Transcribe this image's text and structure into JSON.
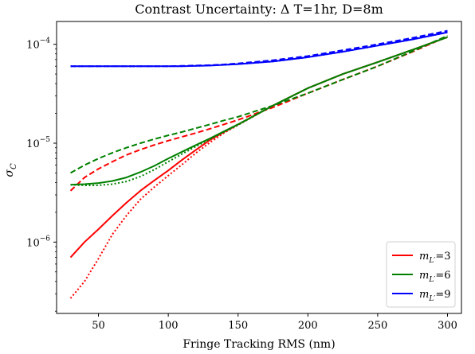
{
  "chart_data": {
    "type": "line",
    "title": "Contrast Uncertainty: Δ T=1hr, D=8m",
    "xlabel": "Fringe Tracking RMS (nm)",
    "ylabel": "σC",
    "ylabel_parts": {
      "base": "σ",
      "sub": "C"
    },
    "xlim": [
      20,
      310
    ],
    "ylim": [
      1.9e-07,
      0.00017
    ],
    "yscale": "log",
    "grid": false,
    "x_ticks": [
      50,
      100,
      150,
      200,
      250,
      300
    ],
    "x_tick_labels": [
      "50",
      "100",
      "150",
      "200",
      "250",
      "300"
    ],
    "y_ticks": [
      1e-06,
      1e-05,
      0.0001
    ],
    "y_tick_labels": [
      {
        "base": "10",
        "exp": "−6"
      },
      {
        "base": "10",
        "exp": "−5"
      },
      {
        "base": "10",
        "exp": "−4"
      }
    ],
    "legend": {
      "position": "lower right",
      "entries": [
        {
          "prefix": "m",
          "sub": "L′",
          "suffix": "=3",
          "color": "#ff0000"
        },
        {
          "prefix": "m",
          "sub": "L′",
          "suffix": "=6",
          "color": "#008000"
        },
        {
          "prefix": "m",
          "sub": "L′",
          "suffix": "=9",
          "color": "#0000ff"
        }
      ]
    },
    "x": [
      30,
      40,
      50,
      60,
      70,
      80,
      90,
      100,
      110,
      120,
      130,
      140,
      150,
      175,
      200,
      225,
      250,
      275,
      300
    ],
    "series": [
      {
        "color": "#ff0000",
        "style": "solid",
        "values": [
          7e-07,
          1e-06,
          1.35e-06,
          1.85e-06,
          2.5e-06,
          3.3e-06,
          4.2e-06,
          5.3e-06,
          6.8e-06,
          8.6e-06,
          1.08e-05,
          1.3e-05,
          1.55e-05,
          2.4e-05,
          3.6e-05,
          5e-05,
          6.6e-05,
          8.8e-05,
          0.000118
        ]
      },
      {
        "color": "#ff0000",
        "style": "dashed",
        "values": [
          3.3e-06,
          4.5e-06,
          5.5e-06,
          6.5e-06,
          7.6e-06,
          8.6e-06,
          9.6e-06,
          1.06e-05,
          1.16e-05,
          1.27e-05,
          1.4e-05,
          1.55e-05,
          1.72e-05,
          2.3e-05,
          3.2e-05,
          4.4e-05,
          6e-05,
          8.4e-05,
          0.00012
        ]
      },
      {
        "color": "#ff0000",
        "style": "dotted",
        "values": [
          2.7e-07,
          4e-07,
          6.8e-07,
          1.2e-06,
          1.85e-06,
          2.7e-06,
          3.6e-06,
          4.7e-06,
          6.1e-06,
          8e-06,
          1.02e-05,
          1.27e-05,
          1.53e-05,
          2.4e-05,
          3.6e-05,
          5e-05,
          6.6e-05,
          8.8e-05,
          0.000118
        ]
      },
      {
        "color": "#008000",
        "style": "solid",
        "values": [
          3.8e-06,
          3.85e-06,
          3.95e-06,
          4.15e-06,
          4.5e-06,
          5.1e-06,
          5.9e-06,
          7e-06,
          8.2e-06,
          9.6e-06,
          1.12e-05,
          1.32e-05,
          1.55e-05,
          2.4e-05,
          3.6e-05,
          5e-05,
          6.6e-05,
          8.8e-05,
          0.000118
        ]
      },
      {
        "color": "#008000",
        "style": "dashed",
        "values": [
          5e-06,
          6e-06,
          7e-06,
          8e-06,
          9e-06,
          1e-05,
          1.1e-05,
          1.2e-05,
          1.3e-05,
          1.42e-05,
          1.55e-05,
          1.7e-05,
          1.85e-05,
          2.4e-05,
          3.2e-05,
          4.4e-05,
          6e-05,
          8.5e-05,
          0.000122
        ]
      },
      {
        "color": "#008000",
        "style": "dotted",
        "values": [
          3.8e-06,
          3.75e-06,
          3.75e-06,
          3.85e-06,
          4.1e-06,
          4.6e-06,
          5.4e-06,
          6.5e-06,
          7.8e-06,
          9.3e-06,
          1.1e-05,
          1.3e-05,
          1.53e-05,
          2.4e-05,
          3.6e-05,
          5e-05,
          6.6e-05,
          8.8e-05,
          0.000118
        ]
      },
      {
        "color": "#0000ff",
        "style": "solid",
        "values": [
          6e-05,
          6e-05,
          6e-05,
          6e-05,
          6e-05,
          6e-05,
          6e-05,
          6e-05,
          6e-05,
          6.05e-05,
          6.1e-05,
          6.2e-05,
          6.3e-05,
          6.7e-05,
          7.4e-05,
          8.4e-05,
          9.7e-05,
          0.000112,
          0.000132
        ]
      },
      {
        "color": "#0000ff",
        "style": "dashed",
        "values": [
          6e-05,
          6e-05,
          6e-05,
          6e-05,
          6e-05,
          6e-05,
          6e-05,
          6e-05,
          6.05e-05,
          6.1e-05,
          6.15e-05,
          6.25e-05,
          6.4e-05,
          6.9e-05,
          7.6e-05,
          8.7e-05,
          0.0001,
          0.000116,
          0.000137
        ]
      },
      {
        "color": "#0000ff",
        "style": "dotted",
        "values": [
          6e-05,
          6e-05,
          6e-05,
          6e-05,
          6e-05,
          6e-05,
          6e-05,
          6e-05,
          6e-05,
          6.05e-05,
          6.1e-05,
          6.2e-05,
          6.3e-05,
          6.7e-05,
          7.4e-05,
          8.4e-05,
          9.7e-05,
          0.000112,
          0.000132
        ]
      }
    ]
  }
}
